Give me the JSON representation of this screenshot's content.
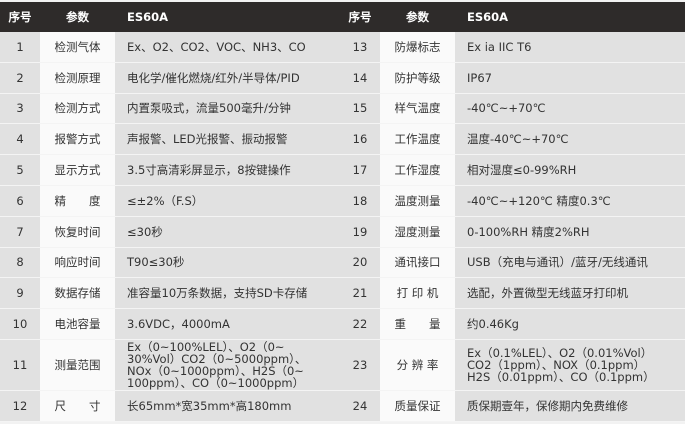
{
  "header": {
    "index": "序号",
    "param": "参数",
    "model": "ES60A"
  },
  "left_rows": [
    {
      "no": "1",
      "param": "检测气体",
      "value": "Ex、O2、CO2、VOC、NH3、CO"
    },
    {
      "no": "2",
      "param": "检测原理",
      "value": "电化学/催化燃烧/红外/半导体/PID"
    },
    {
      "no": "3",
      "param": "检测方式",
      "value": "内置泵吸式，流量500毫升/分钟"
    },
    {
      "no": "4",
      "param": "报警方式",
      "value": "声报警、LED光报警、振动报警"
    },
    {
      "no": "5",
      "param": "显示方式",
      "value": "3.5寸高清彩屏显示，8按键操作"
    },
    {
      "no": "6",
      "param": "精　　度",
      "value": "≤±2%（F.S）"
    },
    {
      "no": "7",
      "param": "恢复时间",
      "value": "≤30秒"
    },
    {
      "no": "8",
      "param": "响应时间",
      "value": "T90≤30秒"
    },
    {
      "no": "9",
      "param": "数据存储",
      "value": "准容量10万条数据，支持SD卡存储"
    },
    {
      "no": "10",
      "param": "电池容量",
      "value": "3.6VDC，4000mA"
    },
    {
      "no": "11",
      "param": "测量范围",
      "value": "Ex（0~100%LEL）、O2（0~\n30%Vol）CO2（0~5000ppm）、\nNOx（0~1000ppm）、H2S（0~\n100ppm）、CO（0~1000ppm）"
    },
    {
      "no": "12",
      "param": "尺　　寸",
      "value": "长65mm*宽35mm*高180mm"
    }
  ],
  "right_rows": [
    {
      "no": "13",
      "param": "防爆标志",
      "value": "Ex ia IIC T6"
    },
    {
      "no": "14",
      "param": "防护等级",
      "value": "IP67"
    },
    {
      "no": "15",
      "param": "样气温度",
      "value": "-40℃~+70℃"
    },
    {
      "no": "16",
      "param": "工作温度",
      "value": "温度-40℃~+70℃"
    },
    {
      "no": "17",
      "param": "工作湿度",
      "value": "相对湿度≤0-99%RH"
    },
    {
      "no": "18",
      "param": "温度测量",
      "value": "-40℃~+120℃  精度0.3℃"
    },
    {
      "no": "19",
      "param": "湿度测量",
      "value": "0-100%RH  精度2%RH"
    },
    {
      "no": "20",
      "param": "通讯接口",
      "value": "USB（充电与通讯）/蓝牙/无线通讯"
    },
    {
      "no": "21",
      "param": "打 印 机",
      "value": "选配，外置微型无线蓝牙打印机"
    },
    {
      "no": "22",
      "param": "重　　量",
      "value": "约0.46Kg"
    },
    {
      "no": "23",
      "param": "分 辨 率",
      "value": "Ex（0.1%LEL）、O2（0.01%Vol）\nCO2（1ppm）、NOX（0.1ppm）\nH2S（0.01ppm）、CO（0.1ppm）"
    },
    {
      "no": "24",
      "param": "质量保证",
      "value": "质保期壹年，保修期内免费维修"
    }
  ]
}
